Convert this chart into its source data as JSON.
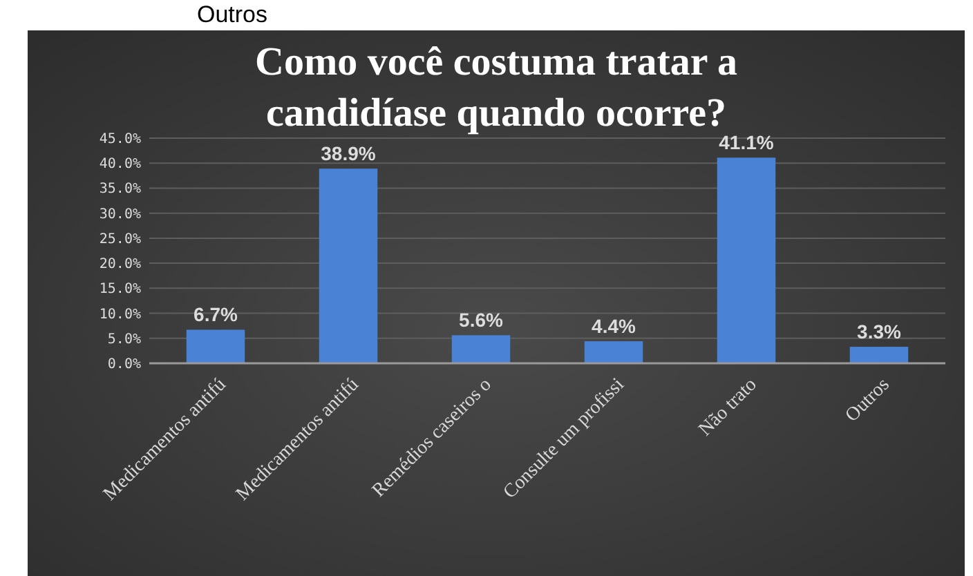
{
  "chart_data": {
    "type": "bar",
    "title": "Como você costuma tratar a candidíase quando ocorre?",
    "annotations": [
      "Outros"
    ],
    "categories": [
      "Medicamentos antifú",
      "Medicamentos antifú",
      "Remédios caseiros o",
      "Consulte um profissi",
      "Não trato",
      "Outros"
    ],
    "values": [
      6.7,
      38.9,
      5.6,
      4.4,
      41.1,
      3.3
    ],
    "value_labels": [
      "6.7%",
      "38.9%",
      "5.6%",
      "4.4%",
      "41.1%",
      "3.3%"
    ],
    "color": "#4a82d6",
    "ylim": [
      0,
      45
    ],
    "yticks": [
      {
        "value": 0,
        "label": "0.0%"
      },
      {
        "value": 5,
        "label": "5.0%"
      },
      {
        "value": 10,
        "label": "10.0%"
      },
      {
        "value": 15,
        "label": "15.0%"
      },
      {
        "value": 20,
        "label": "20.0%"
      },
      {
        "value": 25,
        "label": "25.0%"
      },
      {
        "value": 30,
        "label": "30.0%"
      },
      {
        "value": 35,
        "label": "35.0%"
      },
      {
        "value": 40,
        "label": "40.0%"
      },
      {
        "value": 45,
        "label": "45.0%"
      }
    ],
    "grid": "y"
  }
}
